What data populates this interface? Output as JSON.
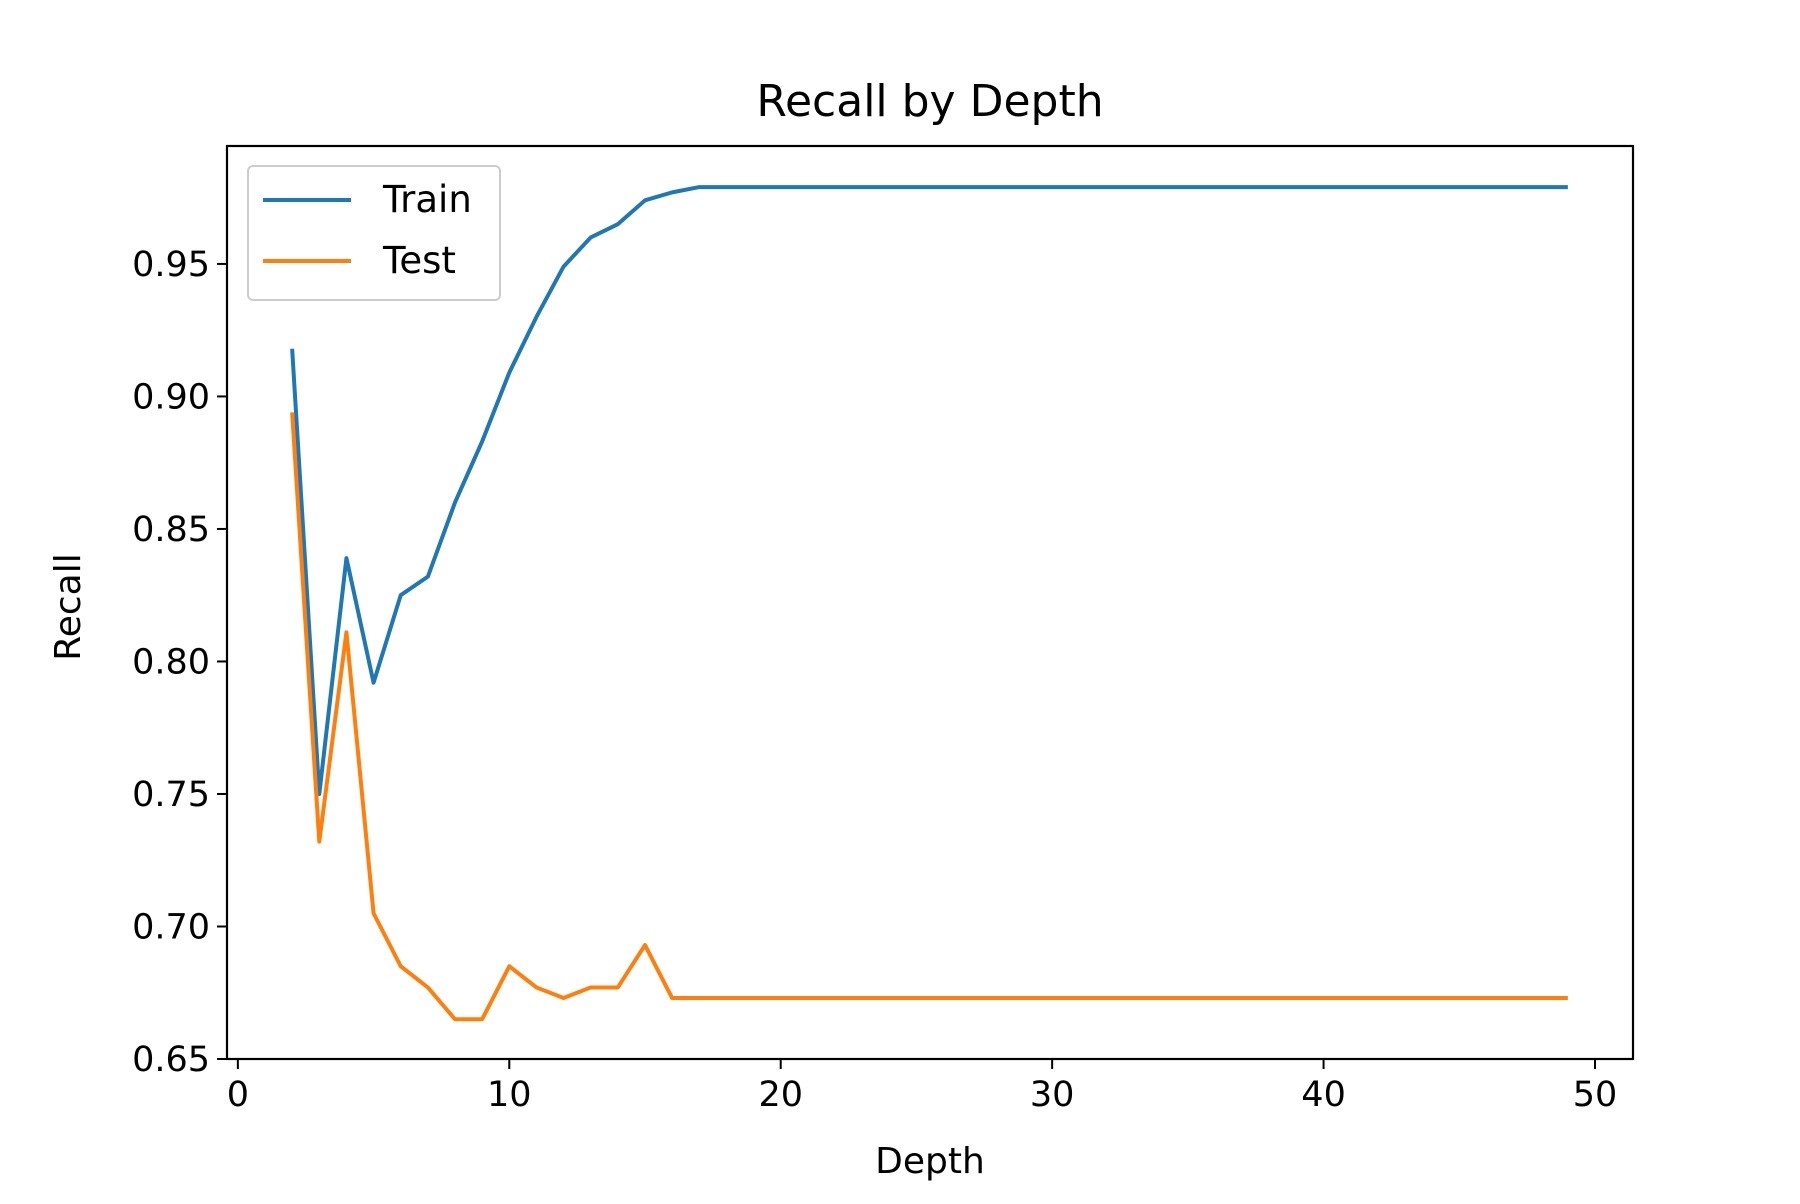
{
  "chart_data": {
    "type": "line",
    "title": "Recall by Depth",
    "xlabel": "Depth",
    "ylabel": "Recall",
    "xlim": [
      -0.4,
      51.4
    ],
    "ylim": [
      0.65,
      0.9945
    ],
    "xticks": [
      0,
      10,
      20,
      30,
      40,
      50
    ],
    "xtick_labels": [
      "0",
      "10",
      "20",
      "30",
      "40",
      "50"
    ],
    "yticks": [
      0.65,
      0.7,
      0.75,
      0.8,
      0.85,
      0.9,
      0.95
    ],
    "ytick_labels": [
      "0.65",
      "0.70",
      "0.75",
      "0.80",
      "0.85",
      "0.90",
      "0.95"
    ],
    "grid": false,
    "legend": "upper-left",
    "x": [
      2,
      3,
      4,
      5,
      6,
      7,
      8,
      9,
      10,
      11,
      12,
      13,
      14,
      15,
      16,
      17,
      18,
      19,
      20,
      21,
      22,
      23,
      24,
      25,
      26,
      27,
      28,
      29,
      30,
      31,
      32,
      33,
      34,
      35,
      36,
      37,
      38,
      39,
      40,
      41,
      42,
      43,
      44,
      45,
      46,
      47,
      48,
      49
    ],
    "series": [
      {
        "name": "Train",
        "color": "#1f77b4",
        "values": [
          0.918,
          0.75,
          0.839,
          0.792,
          0.825,
          0.832,
          0.86,
          0.883,
          0.909,
          0.93,
          0.949,
          0.96,
          0.965,
          0.974,
          0.977,
          0.979,
          0.979,
          0.979,
          0.979,
          0.979,
          0.979,
          0.979,
          0.979,
          0.979,
          0.979,
          0.979,
          0.979,
          0.979,
          0.979,
          0.979,
          0.979,
          0.979,
          0.979,
          0.979,
          0.979,
          0.979,
          0.979,
          0.979,
          0.979,
          0.979,
          0.979,
          0.979,
          0.979,
          0.979,
          0.979,
          0.979,
          0.979,
          0.979
        ]
      },
      {
        "name": "Test",
        "color": "#ff7f0e",
        "values": [
          0.894,
          0.732,
          0.811,
          0.705,
          0.685,
          0.677,
          0.665,
          0.665,
          0.685,
          0.677,
          0.673,
          0.677,
          0.677,
          0.693,
          0.673,
          0.673,
          0.673,
          0.673,
          0.673,
          0.673,
          0.673,
          0.673,
          0.673,
          0.673,
          0.673,
          0.673,
          0.673,
          0.673,
          0.673,
          0.673,
          0.673,
          0.673,
          0.673,
          0.673,
          0.673,
          0.673,
          0.673,
          0.673,
          0.673,
          0.673,
          0.673,
          0.673,
          0.673,
          0.673,
          0.673,
          0.673,
          0.673,
          0.673
        ]
      }
    ]
  }
}
